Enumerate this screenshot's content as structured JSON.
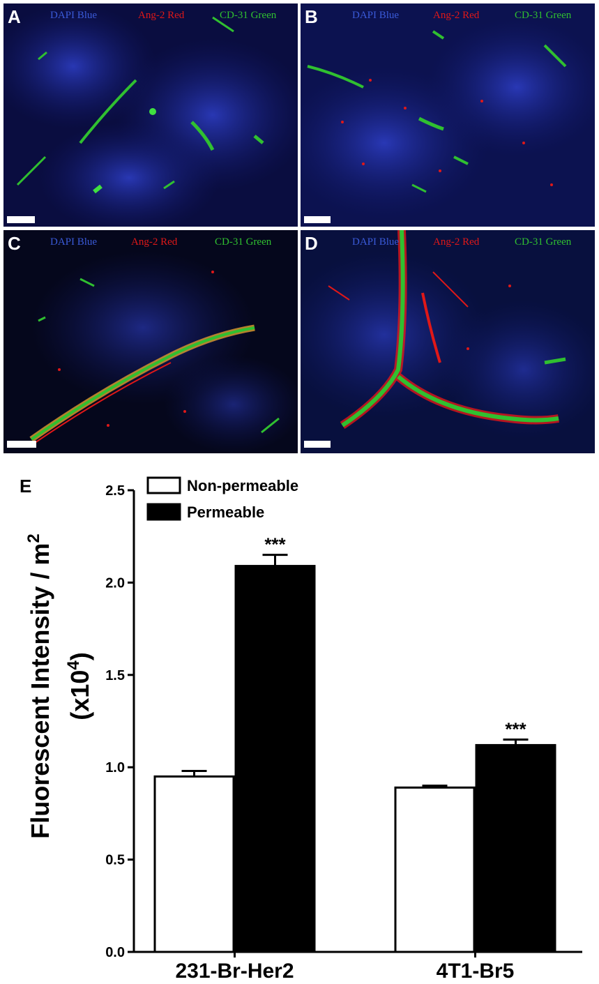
{
  "panels": [
    {
      "letter": "A",
      "channels": {
        "dapi": "DAPI Blue",
        "ang2": "Ang-2 Red",
        "cd31": "CD-31 Green"
      }
    },
    {
      "letter": "B",
      "channels": {
        "dapi": "DAPI Blue",
        "ang2": "Ang-2 Red",
        "cd31": "CD-31 Green"
      }
    },
    {
      "letter": "C",
      "channels": {
        "dapi": "DAPI Blue",
        "ang2": "Ang-2 Red",
        "cd31": "CD-31 Green"
      }
    },
    {
      "letter": "D",
      "channels": {
        "dapi": "DAPI Blue",
        "ang2": "Ang-2 Red",
        "cd31": "CD-31 Green"
      }
    }
  ],
  "colors": {
    "dapi": "#3a5ad8",
    "ang2": "#e01818",
    "cd31": "#30c030",
    "nonperm_fill": "#ffffff",
    "perm_fill": "#000000"
  },
  "chart_data": {
    "type": "bar",
    "panel_letter": "E",
    "categories": [
      "231-Br-Her2",
      "4T1-Br5"
    ],
    "series": [
      {
        "name": "Non-permeable",
        "values": [
          0.95,
          0.89
        ],
        "errors": [
          0.03,
          0.01
        ],
        "color": "#ffffff",
        "annotations": [
          "",
          ""
        ]
      },
      {
        "name": "Permeable",
        "values": [
          2.09,
          1.12
        ],
        "errors": [
          0.06,
          0.03
        ],
        "color": "#000000",
        "annotations": [
          "***",
          "***"
        ]
      }
    ],
    "ylabel_line1": "Fluorescent Intensity / m",
    "ylabel_sup": "2",
    "ylabel_line2_pre": "(x10",
    "ylabel_line2_sup": "4",
    "ylabel_line2_post": ")",
    "ylim": [
      0,
      2.5
    ],
    "yticks": [
      "0.0",
      "0.5",
      "1.0",
      "1.5",
      "2.0",
      "2.5"
    ],
    "legend_position": "top-left"
  }
}
